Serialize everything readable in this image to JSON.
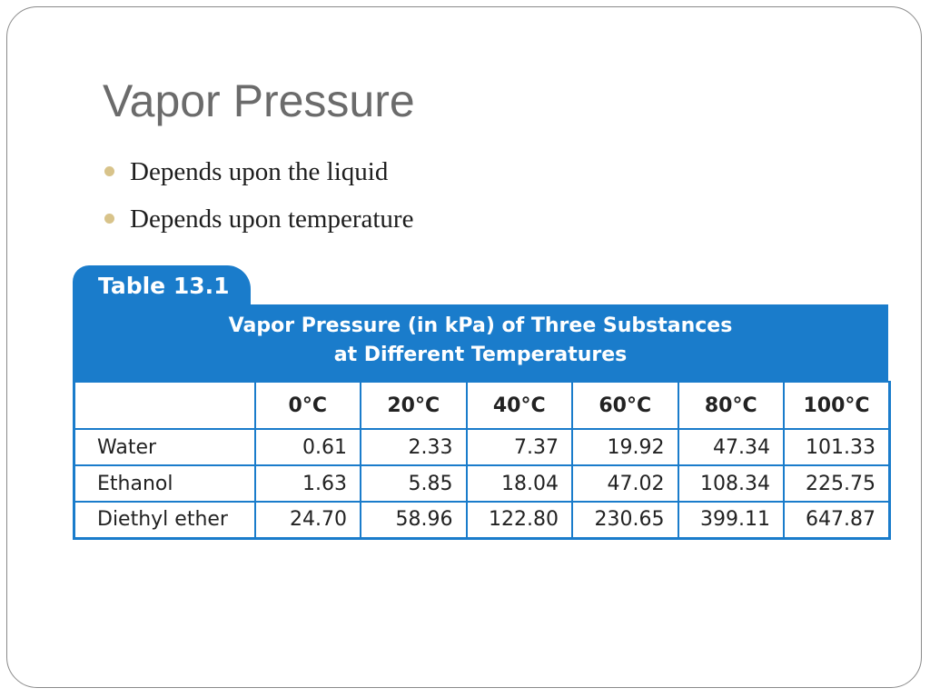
{
  "slide": {
    "title": "Vapor Pressure",
    "bullets": [
      "Depends upon the liquid",
      "Depends upon temperature"
    ]
  },
  "table": {
    "tab_label": "Table 13.1",
    "caption_line1": "Vapor Pressure (in kPa) of Three Substances",
    "caption_line2": "at Different Temperatures",
    "headers": [
      "",
      "0°C",
      "20°C",
      "40°C",
      "60°C",
      "80°C",
      "100°C"
    ],
    "rows": [
      {
        "name": "Water",
        "values": [
          "0.61",
          "2.33",
          "7.37",
          "19.92",
          "47.34",
          "101.33"
        ]
      },
      {
        "name": "Ethanol",
        "values": [
          "1.63",
          "5.85",
          "18.04",
          "47.02",
          "108.34",
          "225.75"
        ]
      },
      {
        "name": "Diethyl ether",
        "values": [
          "24.70",
          "58.96",
          "122.80",
          "230.65",
          "399.11",
          "647.87"
        ]
      }
    ]
  },
  "colors": {
    "accent_blue": "#1a7ccb",
    "bullet_gold": "#d8c38a",
    "title_gray": "#6b6b6b"
  }
}
